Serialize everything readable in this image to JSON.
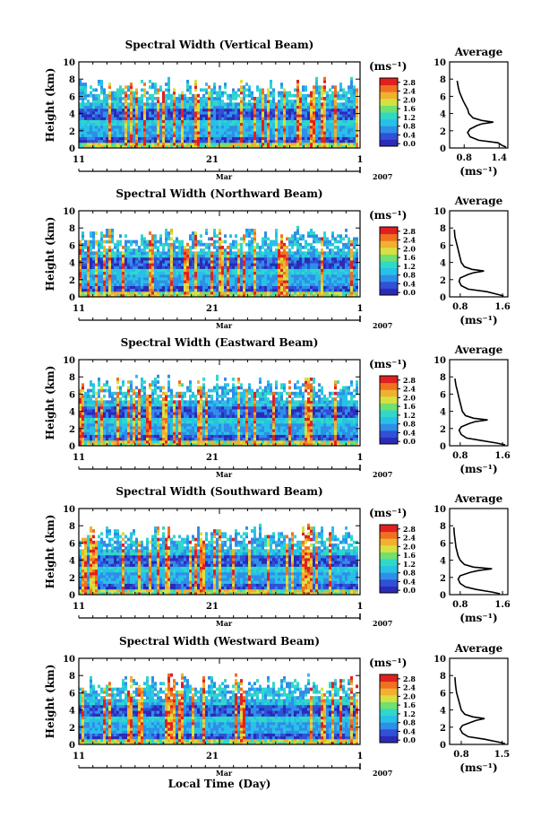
{
  "figure": {
    "x_title": "Local Time (Day)",
    "month_label": "Mar",
    "year_label": "2007",
    "x_ticks": [
      "11",
      "21",
      "1"
    ],
    "unit_label": "(ms⁻¹)",
    "average_title": "Average",
    "average_xlabel": "(ms⁻¹)",
    "colorscale": [
      "#2b2bb8",
      "#3050d8",
      "#2f8ee8",
      "#28c0e8",
      "#30d8c8",
      "#70e070",
      "#d8e040",
      "#f0b030",
      "#f07020",
      "#e02020"
    ]
  },
  "chart_data": [
    {
      "type": "heatmap",
      "title": "Spectral Width (Vertical Beam)",
      "ylabel": "Height (km)",
      "ylim": [
        0,
        10
      ],
      "yticks": [
        "0",
        "2",
        "4",
        "6",
        "8",
        "10"
      ],
      "colorbar": {
        "ticks": [
          "0.0",
          "0.4",
          "0.8",
          "1.2",
          "1.6",
          "2.0",
          "2.4",
          "2.8"
        ],
        "range": [
          0,
          2.8
        ]
      },
      "average_profile": {
        "xticks": [
          "0.8",
          "1.4"
        ],
        "xlim": [
          0.55,
          1.55
        ],
        "ylim": [
          0,
          10
        ],
        "yticks": [
          "0",
          "2",
          "4",
          "6",
          "8",
          "10"
        ],
        "x": [
          1.52,
          1.45,
          1.38,
          1.05,
          0.9,
          0.86,
          0.9,
          1.02,
          1.1,
          1.3,
          1.1,
          0.95,
          0.88,
          0.86,
          0.82,
          0.78,
          0.75,
          0.72,
          0.7,
          0.68
        ],
        "y": [
          0.1,
          0.3,
          0.6,
          0.9,
          1.3,
          1.8,
          2.2,
          2.6,
          2.8,
          3.0,
          3.2,
          3.5,
          4.0,
          4.5,
          5.0,
          5.5,
          6.0,
          6.5,
          7.0,
          7.8
        ]
      }
    },
    {
      "type": "heatmap",
      "title": "Spectral Width (Northward Beam)",
      "ylabel": "Height (km)",
      "ylim": [
        0,
        10
      ],
      "yticks": [
        "0",
        "2",
        "4",
        "6",
        "8",
        "10"
      ],
      "colorbar": {
        "ticks": [
          "0.0",
          "0.4",
          "0.8",
          "1.2",
          "1.6",
          "2.0",
          "2.4",
          "2.8"
        ],
        "range": [
          0,
          2.8
        ]
      },
      "average_profile": {
        "xticks": [
          "0.8",
          "1.6"
        ],
        "xlim": [
          0.6,
          1.7
        ],
        "ylim": [
          0,
          10
        ],
        "yticks": [
          "0",
          "2",
          "4",
          "6",
          "8",
          "10"
        ],
        "x": [
          1.62,
          1.5,
          1.3,
          0.95,
          0.82,
          0.78,
          0.8,
          0.95,
          1.05,
          1.25,
          1.02,
          0.88,
          0.82,
          0.8,
          0.78,
          0.76,
          0.74,
          0.72,
          0.7,
          0.69
        ],
        "y": [
          0.1,
          0.3,
          0.6,
          0.9,
          1.3,
          1.8,
          2.2,
          2.6,
          2.8,
          3.0,
          3.2,
          3.5,
          4.0,
          4.5,
          5.0,
          5.5,
          6.0,
          6.5,
          7.0,
          7.8
        ]
      }
    },
    {
      "type": "heatmap",
      "title": "Spectral Width (Eastward Beam)",
      "ylabel": "Height (km)",
      "ylim": [
        0,
        10
      ],
      "yticks": [
        "0",
        "2",
        "4",
        "6",
        "8",
        "10"
      ],
      "colorbar": {
        "ticks": [
          "0.0",
          "0.4",
          "0.8",
          "1.2",
          "1.6",
          "2.0",
          "2.4",
          "2.8"
        ],
        "range": [
          0,
          2.8
        ]
      },
      "average_profile": {
        "xticks": [
          "0.8",
          "1.6"
        ],
        "xlim": [
          0.6,
          1.7
        ],
        "ylim": [
          0,
          10
        ],
        "yticks": [
          "0",
          "2",
          "4",
          "6",
          "8",
          "10"
        ],
        "x": [
          1.65,
          1.5,
          1.2,
          0.92,
          0.82,
          0.78,
          0.82,
          0.98,
          1.08,
          1.32,
          1.05,
          0.9,
          0.84,
          0.82,
          0.8,
          0.78,
          0.76,
          0.74,
          0.72,
          0.7
        ],
        "y": [
          0.1,
          0.3,
          0.6,
          0.9,
          1.3,
          1.8,
          2.2,
          2.6,
          2.8,
          3.0,
          3.2,
          3.5,
          4.0,
          4.5,
          5.0,
          5.5,
          6.0,
          6.5,
          7.0,
          7.8
        ]
      }
    },
    {
      "type": "heatmap",
      "title": "Spectral Width (Southward Beam)",
      "ylabel": "Height (km)",
      "ylim": [
        0,
        10
      ],
      "yticks": [
        "0",
        "2",
        "4",
        "6",
        "8",
        "10"
      ],
      "colorbar": {
        "ticks": [
          "0.0",
          "0.4",
          "0.8",
          "1.2",
          "1.6",
          "2.0",
          "2.4",
          "2.8"
        ],
        "range": [
          0,
          2.8
        ]
      },
      "average_profile": {
        "xticks": [
          "0.8",
          "1.6"
        ],
        "xlim": [
          0.6,
          1.7
        ],
        "ylim": [
          0,
          10
        ],
        "yticks": [
          "0",
          "2",
          "4",
          "6",
          "8",
          "10"
        ],
        "x": [
          1.55,
          1.4,
          1.1,
          0.9,
          0.8,
          0.76,
          0.8,
          1.0,
          1.15,
          1.4,
          1.05,
          0.88,
          0.8,
          0.76,
          0.74,
          0.72,
          0.71,
          0.7,
          0.69,
          0.68
        ],
        "y": [
          0.1,
          0.3,
          0.6,
          0.9,
          1.3,
          1.8,
          2.2,
          2.6,
          2.8,
          3.0,
          3.2,
          3.5,
          4.0,
          4.5,
          5.0,
          5.5,
          6.0,
          6.5,
          7.0,
          7.8
        ]
      }
    },
    {
      "type": "heatmap",
      "title": "Spectral Width (Westward Beam)",
      "ylabel": "Height (km)",
      "ylim": [
        0,
        10
      ],
      "yticks": [
        "0",
        "2",
        "4",
        "6",
        "8",
        "10"
      ],
      "colorbar": {
        "ticks": [
          "0.0",
          "0.4",
          "0.8",
          "1.2",
          "1.6",
          "2.0",
          "2.4",
          "2.8"
        ],
        "range": [
          0,
          2.8
        ]
      },
      "average_profile": {
        "xticks": [
          "0.8",
          "1.5"
        ],
        "xlim": [
          0.6,
          1.6
        ],
        "ylim": [
          0,
          10
        ],
        "yticks": [
          "0",
          "2",
          "4",
          "6",
          "8",
          "10"
        ],
        "x": [
          1.55,
          1.42,
          1.2,
          0.92,
          0.82,
          0.78,
          0.82,
          0.98,
          1.06,
          1.2,
          1.0,
          0.86,
          0.8,
          0.78,
          0.76,
          0.74,
          0.72,
          0.71,
          0.7,
          0.69
        ],
        "y": [
          0.1,
          0.3,
          0.6,
          0.9,
          1.3,
          1.8,
          2.2,
          2.6,
          2.8,
          3.0,
          3.2,
          3.5,
          4.0,
          4.5,
          5.0,
          5.5,
          6.0,
          6.5,
          7.0,
          7.8
        ]
      }
    }
  ]
}
